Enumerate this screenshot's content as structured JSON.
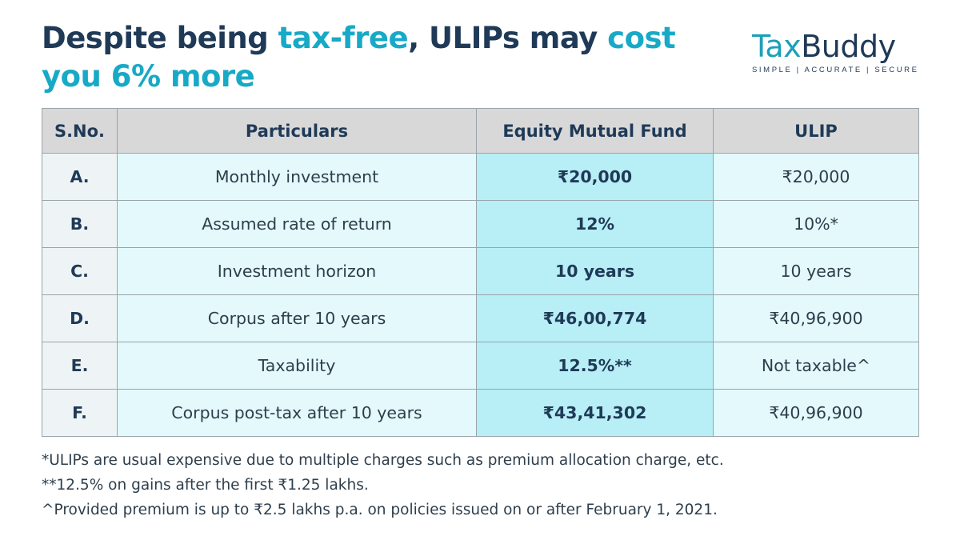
{
  "title": {
    "part1": "Despite being ",
    "accent1": "tax-free",
    "part2": ", ULIPs may ",
    "accent2": "cost you 6% more"
  },
  "logo": {
    "word_tax": "Tax",
    "word_buddy": "Buddy",
    "tagline": "SIMPLE | ACCURATE | SECURE"
  },
  "table": {
    "headers": [
      "S.No.",
      "Particulars",
      "Equity Mutual Fund",
      "ULIP"
    ],
    "rows": [
      {
        "sno": "A.",
        "particular": "Monthly investment",
        "mf": "₹20,000",
        "ulip": "₹20,000"
      },
      {
        "sno": "B.",
        "particular": "Assumed rate of return",
        "mf": "12%",
        "ulip": "10%*"
      },
      {
        "sno": "C.",
        "particular": "Investment horizon",
        "mf": "10 years",
        "ulip": "10 years"
      },
      {
        "sno": "D.",
        "particular": "Corpus after 10 years",
        "mf": "₹46,00,774",
        "ulip": "₹40,96,900"
      },
      {
        "sno": "E.",
        "particular": "Taxability",
        "mf": "12.5%**",
        "ulip": "Not taxable^"
      },
      {
        "sno": "F.",
        "particular": "Corpus post-tax after 10 years",
        "mf": "₹43,41,302",
        "ulip": "₹40,96,900"
      }
    ]
  },
  "notes": [
    "*ULIPs are usual expensive due to multiple charges such as premium allocation charge, etc.",
    "**12.5% on gains after the first ₹1.25 lakhs.",
    "^Provided premium is up to ₹2.5 lakhs p.a. on policies issued on or after February 1, 2021."
  ],
  "colors": {
    "navy": "#1f3a57",
    "accent": "#18a9c6",
    "header_bg": "#d8d8d8",
    "row_bg": "#e3f9fb",
    "mf_col_bg": "#b8eef5"
  }
}
